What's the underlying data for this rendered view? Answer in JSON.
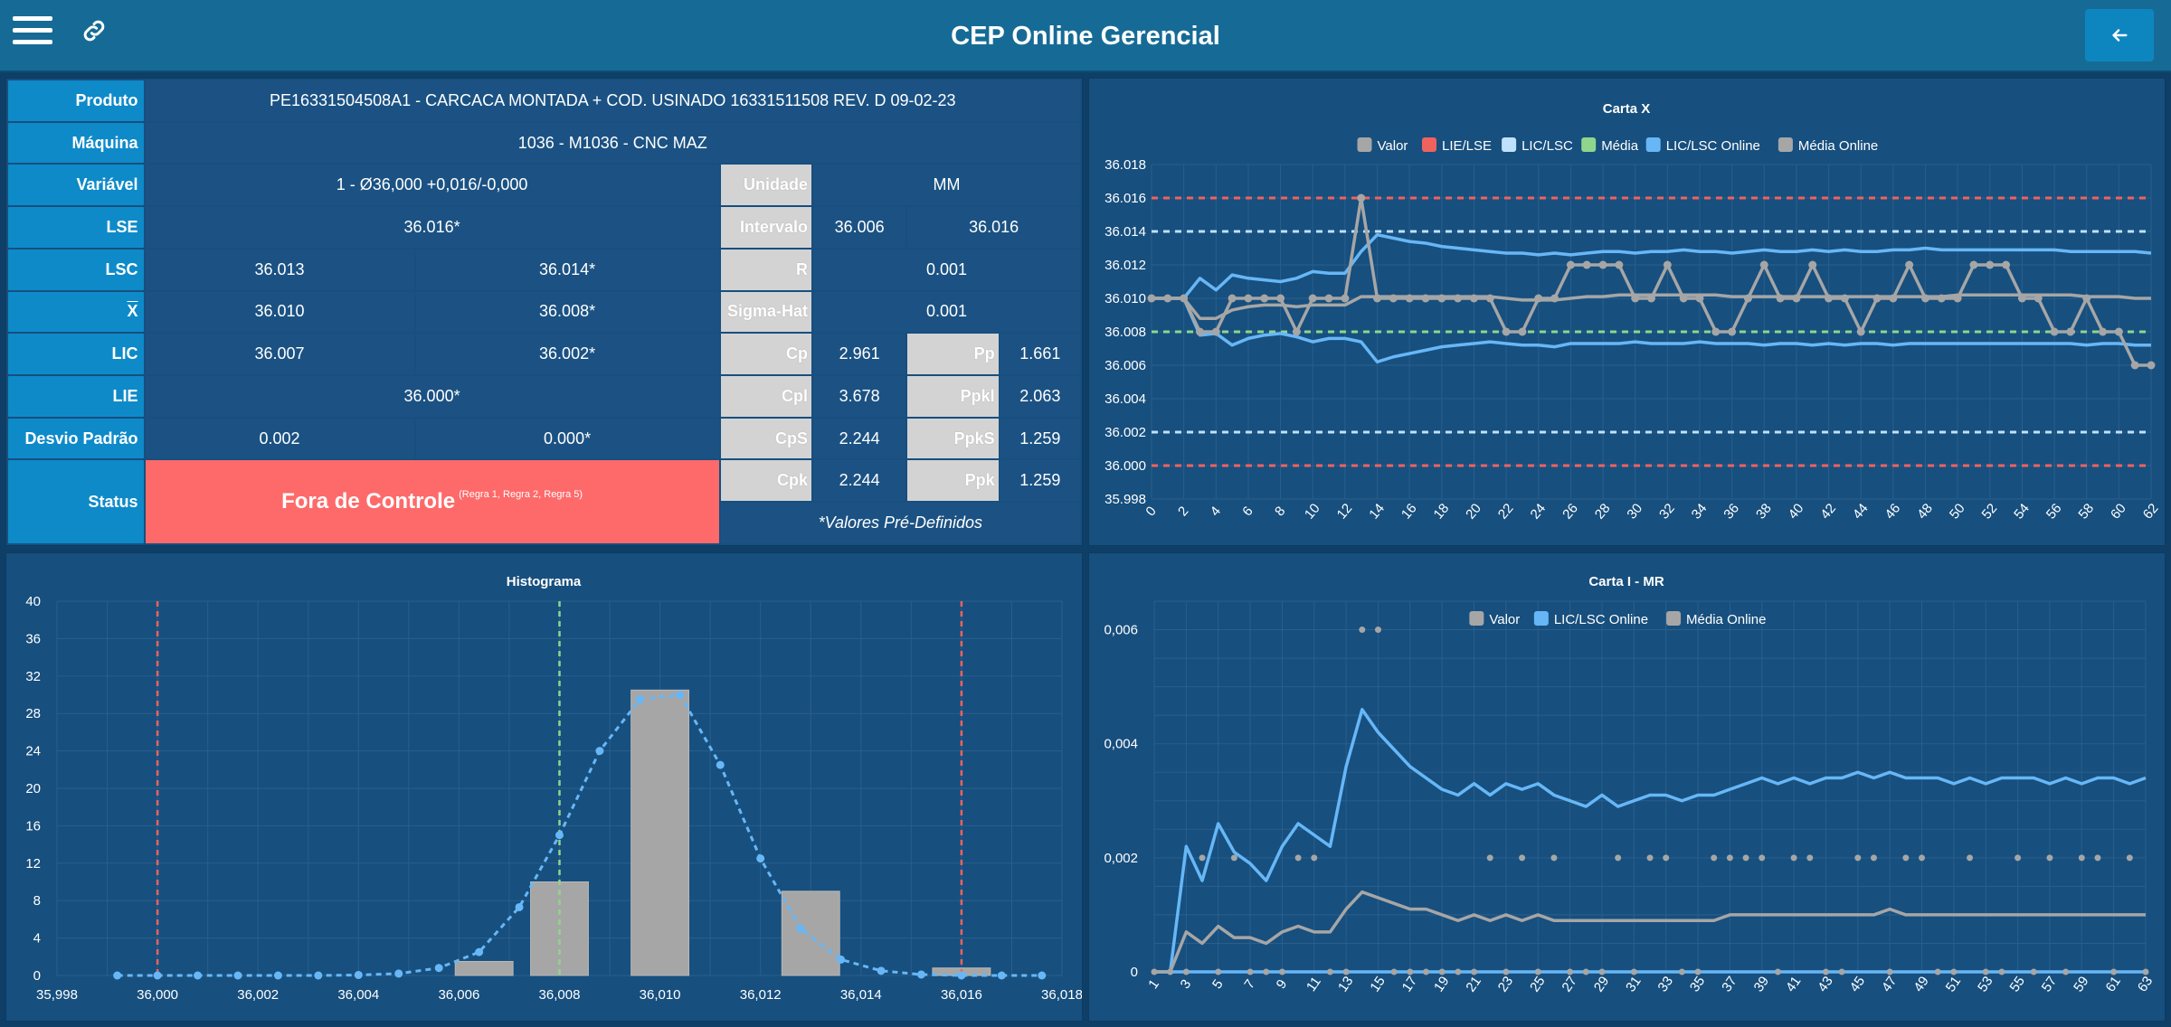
{
  "header": {
    "title": "CEP Online Gerencial",
    "menu_icon": "hamburger-menu-icon",
    "link_icon": "link-icon",
    "back_icon": "arrow-left-icon"
  },
  "info": {
    "produto_label": "Produto",
    "produto": "PE16331504508A1 - CARCACA MONTADA + COD. USINADO 16331511508 REV. D 09-02-23",
    "maquina_label": "Máquina",
    "maquina": "1036 - M1036 - CNC MAZ",
    "variavel_label": "Variável",
    "variavel": "1 - Ø36,000 +0,016/-0,000",
    "unidade_label": "Unidade",
    "unidade": "MM",
    "lse_label": "LSE",
    "lse": "36.016*",
    "intervalo_label": "Intervalo",
    "intervalo_min": "36.006",
    "intervalo_max": "36.016",
    "lsc_label": "LSC",
    "lsc_online": "36.013",
    "lsc_predef": "36.014*",
    "r_label": "R",
    "r": "0.001",
    "xbar_label": "X",
    "xbar_online": "36.010",
    "xbar_predef": "36.008*",
    "sigma_label": "Sigma-Hat",
    "sigma": "0.001",
    "lic_label": "LIC",
    "lic_online": "36.007",
    "lic_predef": "36.002*",
    "cp_label": "Cp",
    "cp": "2.961",
    "pp_label": "Pp",
    "pp": "1.661",
    "lie_label": "LIE",
    "lie": "36.000*",
    "cpl_label": "Cpl",
    "cpl": "3.678",
    "ppkl_label": "Ppkl",
    "ppkl": "2.063",
    "desvio_label": "Desvio Padrão",
    "desvio_online": "0.002",
    "desvio_predef": "0.000*",
    "cps_label": "CpS",
    "cps": "2.244",
    "ppks_label": "PpkS",
    "ppks": "1.259",
    "status_label": "Status",
    "status": "Fora de Controle",
    "status_rules": "(Regra 1, Regra 2, Regra 5)",
    "cpk_label": "Cpk",
    "cpk": "2.244",
    "ppk_label": "Ppk",
    "ppk": "1.259",
    "note": "*Valores Pré-Definidos"
  },
  "colors": {
    "grey": "#a6a6a6",
    "red": "#f0625e",
    "lightblue": "#bfe1fb",
    "green": "#8fd68c",
    "blue": "#67b7f7",
    "panel": "#174f7e",
    "status_red": "#fe6a6a",
    "label_blue": "#0e8ac9"
  },
  "chart_data": [
    {
      "id": "cartax",
      "type": "line",
      "title": "Carta X",
      "legend": [
        "Valor",
        "LIE/LSE",
        "LIC/LSC",
        "Média",
        "LIC/LSC Online",
        "Média Online"
      ],
      "legend_colors": [
        "#a6a6a6",
        "#f0625e",
        "#bfe1fb",
        "#8fd68c",
        "#67b7f7",
        "#a6a6a6"
      ],
      "legend_position": "top",
      "ylim": [
        35.998,
        36.018
      ],
      "yticks": [
        "36.018",
        "36.016",
        "36.014",
        "36.012",
        "36.010",
        "36.008",
        "36.006",
        "36.004",
        "36.002",
        "36.000",
        "35.998"
      ],
      "xticks": [
        "0",
        "2",
        "4",
        "6",
        "8",
        "10",
        "12",
        "14",
        "16",
        "18",
        "20",
        "22",
        "24",
        "26",
        "28",
        "30",
        "32",
        "34",
        "36",
        "38",
        "40",
        "42",
        "44",
        "46",
        "48",
        "50",
        "52",
        "54",
        "56",
        "58",
        "60",
        "62"
      ],
      "xmax": 62,
      "lie": 36.0,
      "lse": 36.016,
      "lic": 36.002,
      "lsc": 36.014,
      "media": 36.008,
      "valor": [
        36.01,
        36.01,
        36.01,
        36.008,
        36.008,
        36.01,
        36.01,
        36.01,
        36.01,
        36.008,
        36.01,
        36.01,
        36.01,
        36.016,
        36.01,
        36.01,
        36.01,
        36.01,
        36.01,
        36.01,
        36.01,
        36.01,
        36.008,
        36.008,
        36.01,
        36.01,
        36.012,
        36.012,
        36.012,
        36.012,
        36.01,
        36.01,
        36.012,
        36.01,
        36.01,
        36.008,
        36.008,
        36.01,
        36.012,
        36.01,
        36.01,
        36.012,
        36.01,
        36.01,
        36.008,
        36.01,
        36.01,
        36.012,
        36.01,
        36.01,
        36.01,
        36.012,
        36.012,
        36.012,
        36.01,
        36.01,
        36.008,
        36.008,
        36.01,
        36.008,
        36.008,
        36.006,
        36.006
      ],
      "lsc_online": [
        36.01,
        36.01,
        36.01,
        36.0112,
        36.0105,
        36.0114,
        36.0112,
        36.0111,
        36.011,
        36.0112,
        36.0116,
        36.0115,
        36.0115,
        36.0128,
        36.0138,
        36.0136,
        36.0134,
        36.0133,
        36.0131,
        36.013,
        36.0129,
        36.0128,
        36.0127,
        36.0127,
        36.0126,
        36.0127,
        36.0126,
        36.0127,
        36.0128,
        36.0128,
        36.0127,
        36.0128,
        36.0128,
        36.0129,
        36.0128,
        36.0128,
        36.0127,
        36.0128,
        36.0129,
        36.0128,
        36.0128,
        36.0129,
        36.0128,
        36.0129,
        36.0128,
        36.0128,
        36.0129,
        36.0129,
        36.013,
        36.0129,
        36.0129,
        36.0129,
        36.0129,
        36.0129,
        36.0129,
        36.0129,
        36.0129,
        36.0128,
        36.0128,
        36.0128,
        36.0128,
        36.0128,
        36.0127
      ],
      "media_online": [
        36.01,
        36.01,
        36.01,
        36.0088,
        36.0088,
        36.0093,
        36.0095,
        36.0096,
        36.0096,
        36.0095,
        36.0096,
        36.0096,
        36.0096,
        36.0101,
        36.0101,
        36.0101,
        36.0101,
        36.0101,
        36.0101,
        36.0101,
        36.0101,
        36.0101,
        36.01,
        36.0099,
        36.0099,
        36.0099,
        36.01,
        36.0101,
        36.0101,
        36.0102,
        36.0102,
        36.0102,
        36.0102,
        36.0102,
        36.0102,
        36.0102,
        36.0101,
        36.0101,
        36.0101,
        36.0101,
        36.0101,
        36.0101,
        36.0101,
        36.0101,
        36.0101,
        36.0101,
        36.0101,
        36.0101,
        36.0101,
        36.0101,
        36.0102,
        36.0102,
        36.0102,
        36.0102,
        36.0102,
        36.0102,
        36.0102,
        36.0102,
        36.0101,
        36.0101,
        36.0101,
        36.01,
        36.01
      ],
      "lic_online": [
        36.01,
        36.01,
        36.01,
        36.0078,
        36.0079,
        36.0072,
        36.0076,
        36.0078,
        36.0079,
        36.0077,
        36.0074,
        36.0076,
        36.0076,
        36.0074,
        36.0062,
        36.0065,
        36.0067,
        36.0069,
        36.0071,
        36.0072,
        36.0073,
        36.0074,
        36.0073,
        36.0072,
        36.0072,
        36.0071,
        36.0073,
        36.0073,
        36.0073,
        36.0073,
        36.0074,
        36.0073,
        36.0073,
        36.0073,
        36.0074,
        36.0073,
        36.0073,
        36.0073,
        36.0072,
        36.0073,
        36.0073,
        36.0072,
        36.0073,
        36.0072,
        36.0073,
        36.0073,
        36.0072,
        36.0073,
        36.0073,
        36.0073,
        36.0073,
        36.0073,
        36.0073,
        36.0073,
        36.0073,
        36.0073,
        36.0073,
        36.0073,
        36.0072,
        36.0073,
        36.0073,
        36.0072,
        36.0072
      ]
    },
    {
      "id": "histograma",
      "type": "bar",
      "title": "Histograma",
      "xlim": [
        35.998,
        36.018
      ],
      "xticks": [
        "35,998",
        "36,000",
        "36,002",
        "36,004",
        "36,006",
        "36,008",
        "36,010",
        "36,012",
        "36,014",
        "36,016",
        "36,018"
      ],
      "ylim": [
        0,
        40
      ],
      "yticks": [
        "40",
        "36",
        "32",
        "28",
        "24",
        "20",
        "16",
        "12",
        "8",
        "4",
        "0"
      ],
      "bars": [
        {
          "center": 36.0065,
          "value": 1.5
        },
        {
          "center": 36.008,
          "value": 10
        },
        {
          "center": 36.01,
          "value": 30.5
        },
        {
          "center": 36.013,
          "value": 9
        },
        {
          "center": 36.016,
          "value": 0.8
        }
      ],
      "bar_width": 0.00115,
      "curve_x": [
        35.9992,
        36.0,
        36.0008,
        36.0016,
        36.0024,
        36.0032,
        36.004,
        36.0048,
        36.0056,
        36.0064,
        36.0072,
        36.008,
        36.0088,
        36.0096,
        36.0104,
        36.0112,
        36.012,
        36.0128,
        36.0136,
        36.0144,
        36.0152,
        36.016,
        36.0168,
        36.0176
      ],
      "curve_y": [
        0,
        0,
        0,
        0,
        0,
        0,
        0.05,
        0.2,
        0.8,
        2.5,
        7.3,
        15,
        24,
        29.5,
        30,
        22.5,
        12.5,
        5,
        1.7,
        0.5,
        0.1,
        0,
        0,
        0
      ],
      "lie": 36.0,
      "media": 36.008,
      "lse": 36.016
    },
    {
      "id": "cartaimr",
      "type": "line",
      "title": "Carta I - MR",
      "legend": [
        "Valor",
        "LIC/LSC Online",
        "Média Online"
      ],
      "legend_colors": [
        "#a6a6a6",
        "#67b7f7",
        "#a6a6a6"
      ],
      "legend_position": "top",
      "ylim": [
        0,
        0.0065
      ],
      "yticks": [
        "0,006",
        "0,004",
        "0,002",
        "0"
      ],
      "xticks": [
        "1",
        "3",
        "5",
        "7",
        "9",
        "11",
        "13",
        "15",
        "17",
        "19",
        "21",
        "23",
        "25",
        "27",
        "29",
        "31",
        "33",
        "35",
        "37",
        "39",
        "41",
        "43",
        "45",
        "47",
        "49",
        "51",
        "53",
        "55",
        "57",
        "59",
        "61",
        "63"
      ],
      "xmax": 63,
      "valor": [
        0,
        0,
        0,
        0.002,
        0,
        0.002,
        0,
        0,
        0,
        0.002,
        0.002,
        0,
        0,
        0.006,
        0.006,
        0,
        0,
        0,
        0,
        0,
        0,
        0.002,
        0,
        0.002,
        0,
        0.002,
        0,
        0,
        0,
        0.002,
        0,
        0.002,
        0.002,
        0,
        0,
        0.002,
        0.002,
        0.002,
        0.002,
        0,
        0.002,
        0.002,
        0,
        0,
        0.002,
        0.002,
        0,
        0.002,
        0.002,
        0,
        0,
        0.002,
        0,
        0,
        0.002,
        0,
        0.002,
        0,
        0.002,
        0.002,
        0,
        0.002,
        0
      ],
      "lsc_online": [
        0,
        0,
        0.0022,
        0.0016,
        0.0026,
        0.0021,
        0.0019,
        0.0016,
        0.0022,
        0.0026,
        0.0024,
        0.0022,
        0.0036,
        0.0046,
        0.0042,
        0.0039,
        0.0036,
        0.0034,
        0.0032,
        0.0031,
        0.0033,
        0.0031,
        0.0033,
        0.0032,
        0.0033,
        0.0031,
        0.003,
        0.0029,
        0.0031,
        0.0029,
        0.003,
        0.0031,
        0.0031,
        0.003,
        0.0031,
        0.0031,
        0.0032,
        0.0033,
        0.0034,
        0.0033,
        0.0034,
        0.0033,
        0.0034,
        0.0034,
        0.0035,
        0.0034,
        0.0035,
        0.0034,
        0.0034,
        0.0034,
        0.0033,
        0.0034,
        0.0033,
        0.0034,
        0.0034,
        0.0034,
        0.0033,
        0.0034,
        0.0033,
        0.0034,
        0.0034,
        0.0033,
        0.0034
      ],
      "media_online": [
        0,
        0,
        0.0007,
        0.0005,
        0.0008,
        0.0006,
        0.0006,
        0.0005,
        0.0007,
        0.0008,
        0.0007,
        0.0007,
        0.0011,
        0.0014,
        0.0013,
        0.0012,
        0.0011,
        0.0011,
        0.001,
        0.0009,
        0.001,
        0.0009,
        0.001,
        0.0009,
        0.001,
        0.0009,
        0.0009,
        0.0009,
        0.0009,
        0.0009,
        0.0009,
        0.0009,
        0.0009,
        0.0009,
        0.0009,
        0.0009,
        0.001,
        0.001,
        0.001,
        0.001,
        0.001,
        0.001,
        0.001,
        0.001,
        0.001,
        0.001,
        0.0011,
        0.001,
        0.001,
        0.001,
        0.001,
        0.001,
        0.001,
        0.001,
        0.001,
        0.001,
        0.001,
        0.001,
        0.001,
        0.001,
        0.001,
        0.001,
        0.001
      ],
      "lic_online": [
        0,
        0,
        0,
        0,
        0,
        0,
        0,
        0,
        0,
        0,
        0,
        0,
        0,
        0,
        0,
        0,
        0,
        0,
        0,
        0,
        0,
        0,
        0,
        0,
        0,
        0,
        0,
        0,
        0,
        0,
        0,
        0,
        0,
        0,
        0,
        0,
        0,
        0,
        0,
        0,
        0,
        0,
        0,
        0,
        0,
        0,
        0,
        0,
        0,
        0,
        0,
        0,
        0,
        0,
        0,
        0,
        0,
        0,
        0,
        0,
        0,
        0,
        0
      ]
    }
  ]
}
